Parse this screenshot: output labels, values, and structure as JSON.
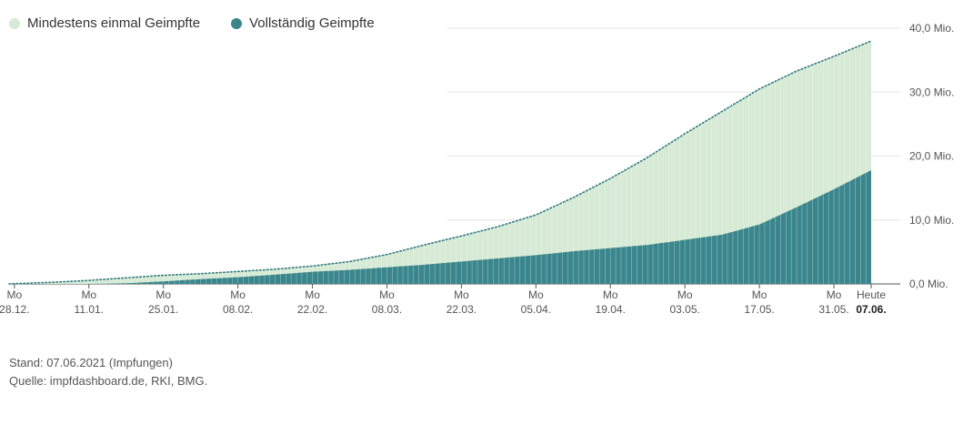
{
  "legend": {
    "first_label": "Mindestens einmal Geimpfte",
    "full_label": "Vollständig Geimpfte"
  },
  "colors": {
    "first": "#d6ead5",
    "full": "#3a868c",
    "first_line": "#2f7a80",
    "grid": "#e6e6e6",
    "axis": "#555555"
  },
  "footer": {
    "stand": "Stand: 07.06.2021 (Impfungen)",
    "quelle": "Quelle: impfdashboard.de, RKI, BMG."
  },
  "chart_data": {
    "type": "area",
    "y_unit": "Mio.",
    "ylim": [
      0,
      40
    ],
    "y_ticks": [
      {
        "value": 0,
        "label": "0,0 Mio."
      },
      {
        "value": 10,
        "label": "10,0 Mio."
      },
      {
        "value": 20,
        "label": "20,0 Mio."
      },
      {
        "value": 30,
        "label": "30,0 Mio."
      },
      {
        "value": 40,
        "label": "40,0 Mio."
      }
    ],
    "x_ticks": [
      {
        "date": "2020-12-28",
        "day": "Mo",
        "label": "28.12."
      },
      {
        "date": "2021-01-11",
        "day": "Mo",
        "label": "11.01."
      },
      {
        "date": "2021-01-25",
        "day": "Mo",
        "label": "25.01."
      },
      {
        "date": "2021-02-08",
        "day": "Mo",
        "label": "08.02."
      },
      {
        "date": "2021-02-22",
        "day": "Mo",
        "label": "22.02."
      },
      {
        "date": "2021-03-08",
        "day": "Mo",
        "label": "08.03."
      },
      {
        "date": "2021-03-22",
        "day": "Mo",
        "label": "22.03."
      },
      {
        "date": "2021-04-05",
        "day": "Mo",
        "label": "05.04."
      },
      {
        "date": "2021-04-19",
        "day": "Mo",
        "label": "19.04."
      },
      {
        "date": "2021-05-03",
        "day": "Mo",
        "label": "03.05."
      },
      {
        "date": "2021-05-17",
        "day": "Mo",
        "label": "17.05."
      },
      {
        "date": "2021-05-31",
        "day": "Mo",
        "label": "31.05."
      },
      {
        "date": "2021-06-07",
        "day": "Heute",
        "label": "07.06.",
        "bold": true
      }
    ],
    "grid": true,
    "legend_position": "top-left",
    "x_start": "2020-12-27",
    "x_end": "2021-06-07",
    "series": [
      {
        "name": "Mindestens einmal Geimpfte",
        "style": "area-with-dotted-line",
        "points": [
          [
            "2020-12-27",
            0.0
          ],
          [
            "2020-12-28",
            0.05
          ],
          [
            "2021-01-04",
            0.25
          ],
          [
            "2021-01-11",
            0.55
          ],
          [
            "2021-01-18",
            0.95
          ],
          [
            "2021-01-25",
            1.35
          ],
          [
            "2021-02-01",
            1.6
          ],
          [
            "2021-02-08",
            1.95
          ],
          [
            "2021-02-15",
            2.3
          ],
          [
            "2021-02-22",
            2.8
          ],
          [
            "2021-03-01",
            3.5
          ],
          [
            "2021-03-08",
            4.6
          ],
          [
            "2021-03-15",
            6.1
          ],
          [
            "2021-03-22",
            7.5
          ],
          [
            "2021-03-29",
            9.0
          ],
          [
            "2021-04-05",
            10.8
          ],
          [
            "2021-04-12",
            13.5
          ],
          [
            "2021-04-19",
            16.5
          ],
          [
            "2021-04-26",
            19.8
          ],
          [
            "2021-05-03",
            23.5
          ],
          [
            "2021-05-10",
            27.0
          ],
          [
            "2021-05-17",
            30.5
          ],
          [
            "2021-05-24",
            33.3
          ],
          [
            "2021-05-31",
            35.6
          ],
          [
            "2021-06-07",
            38.0
          ]
        ]
      },
      {
        "name": "Vollständig Geimpfte",
        "style": "area",
        "points": [
          [
            "2020-12-27",
            0.0
          ],
          [
            "2021-01-11",
            0.0
          ],
          [
            "2021-01-18",
            0.1
          ],
          [
            "2021-01-25",
            0.4
          ],
          [
            "2021-02-01",
            0.75
          ],
          [
            "2021-02-08",
            1.05
          ],
          [
            "2021-02-15",
            1.45
          ],
          [
            "2021-02-22",
            1.9
          ],
          [
            "2021-03-01",
            2.2
          ],
          [
            "2021-03-08",
            2.6
          ],
          [
            "2021-03-15",
            3.0
          ],
          [
            "2021-03-22",
            3.5
          ],
          [
            "2021-03-29",
            4.0
          ],
          [
            "2021-04-05",
            4.5
          ],
          [
            "2021-04-12",
            5.1
          ],
          [
            "2021-04-19",
            5.6
          ],
          [
            "2021-04-26",
            6.1
          ],
          [
            "2021-05-03",
            6.9
          ],
          [
            "2021-05-10",
            7.7
          ],
          [
            "2021-05-17",
            9.3
          ],
          [
            "2021-05-24",
            12.0
          ],
          [
            "2021-05-31",
            14.8
          ],
          [
            "2021-06-07",
            17.8
          ]
        ]
      }
    ]
  }
}
